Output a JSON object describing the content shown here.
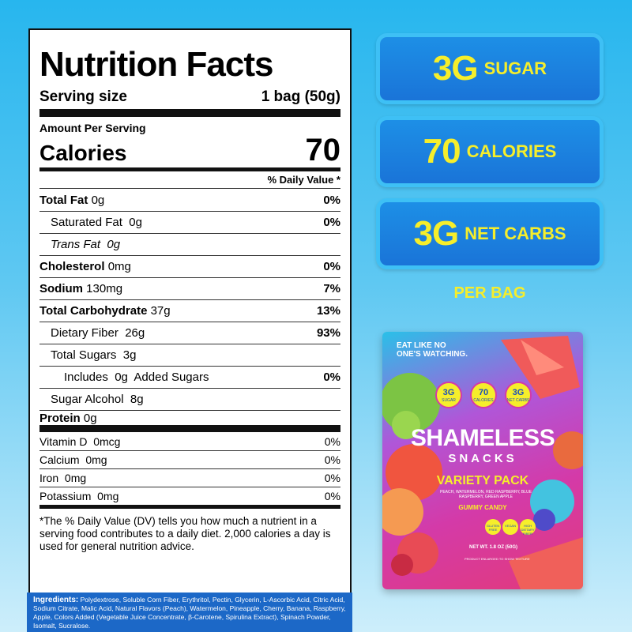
{
  "nutrition": {
    "title": "Nutrition Facts",
    "serving_label": "Serving size",
    "serving_value": "1 bag (50g)",
    "amount_per_serving": "Amount Per Serving",
    "calories_label": "Calories",
    "calories_value": "70",
    "daily_value_header": "% Daily Value *",
    "rows": [
      {
        "label": "Total Fat",
        "amount": "0g",
        "dv": "0%"
      },
      {
        "label": "Saturated Fat",
        "amount": "0g",
        "dv": "0%"
      },
      {
        "label": "Trans Fat",
        "amount": "0g",
        "dv": ""
      },
      {
        "label": "Cholesterol",
        "amount": "0mg",
        "dv": "0%"
      },
      {
        "label": "Sodium",
        "amount": "130mg",
        "dv": "7%"
      },
      {
        "label": "Total Carbohydrate",
        "amount": "37g",
        "dv": "13%"
      },
      {
        "label": "Dietary Fiber",
        "amount": "26g",
        "dv": "93%"
      },
      {
        "label": "Total Sugars",
        "amount": "3g",
        "dv": ""
      },
      {
        "label": "Includes",
        "amount": "0g",
        "dv": "0%"
      },
      {
        "label": "Sugar Alcohol",
        "amount": "8g",
        "dv": ""
      },
      {
        "label": "Protein",
        "amount": "0g",
        "dv": ""
      }
    ],
    "added_sugars_suffix": "Added Sugars",
    "vitamins": [
      {
        "label": "Vitamin D",
        "amount": "0mcg",
        "dv": "0%"
      },
      {
        "label": "Calcium",
        "amount": "0mg",
        "dv": "0%"
      },
      {
        "label": "Iron",
        "amount": "0mg",
        "dv": "0%"
      },
      {
        "label": "Potassium",
        "amount": "0mg",
        "dv": "0%"
      }
    ],
    "footnote": "*The % Daily Value (DV) tells you how much a nutrient in a serving food contributes to a daily diet. 2,000 calories a day is used for general nutrition advice."
  },
  "ingredients": {
    "label": "Ingredients:",
    "text": "Polydextrose, Soluble Corn Fiber, Erythritol, Pectin, Glycerin, L-Ascorbic Acid, Citric Acid, Sodium Citrate, Malic Acid, Natural Flavors (Peach), Watermelon, Pineapple, Cherry, Banana, Raspberry, Apple, Colors Added (Vegetable Juice Concentrate, β-Carotene, Spirulina Extract), Spinach Powder, Isomalt, Sucralose."
  },
  "highlights": [
    {
      "big": "3G",
      "small": "SUGAR"
    },
    {
      "big": "70",
      "small": "CALORIES"
    },
    {
      "big": "3G",
      "small": "NET CARBS"
    }
  ],
  "per_bag": "PER BAG",
  "package": {
    "tagline": "EAT LIKE NO ONE'S WATCHING.",
    "badges": [
      {
        "big": "3G",
        "small": "SUGAR"
      },
      {
        "big": "70",
        "small": "CALORIES"
      },
      {
        "big": "3G",
        "small": "NET CARBS"
      }
    ],
    "brand": "SHAMELESS",
    "brand_sub": "SNACKS",
    "variety": "VARIETY PACK",
    "flavors": "PEACH, WATERMELON, RED RASPBERRY, BLUE RASPBERRY, GREEN APPLE",
    "candy_type": "GUMMY CANDY",
    "seals": [
      "GLUTEN FREE",
      "VEGAN",
      "HIGH DIETARY FIBER"
    ],
    "net_wt": "NET WT. 1.8 OZ (50G)",
    "disclaimer": "PRODUCT ENLARGED TO SHOW TEXTURE",
    "colors": {
      "pill_blue": "#1a74d8",
      "yellow": "#f6ee2b",
      "bag_pink": "#d43aa8"
    }
  }
}
